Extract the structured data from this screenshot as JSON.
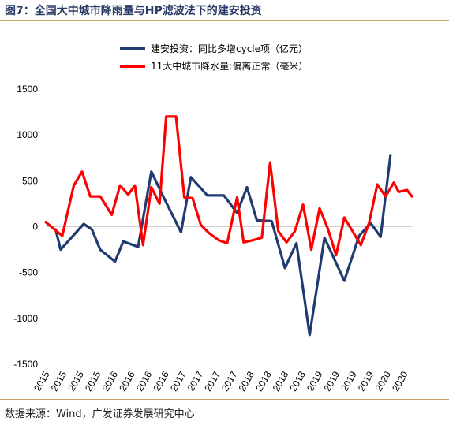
{
  "header": {
    "title": "图7：全国大中城市降雨量与HP滤波法下的建安投资"
  },
  "footer": {
    "source": "数据来源：Wind，广发证券发展研究中心"
  },
  "chart_data": {
    "type": "line",
    "y_ticks": [
      "1500",
      "1000",
      "500",
      "0",
      "-500",
      "-1000",
      "-1500"
    ],
    "ylim": [
      -1500,
      1500
    ],
    "x_ticks": [
      "2015",
      "2015",
      "2015",
      "2015",
      "2016",
      "2016",
      "2016",
      "2016",
      "2017",
      "2017",
      "2017",
      "2017",
      "2018",
      "2018",
      "2018",
      "2018",
      "2019",
      "2019",
      "2019",
      "2019",
      "2020",
      "2020"
    ],
    "legend": [
      {
        "name": "建安投资：同比多增cycle项（亿元）",
        "color": "#1f3b70"
      },
      {
        "name": "11大中城市降水量:偏离正常（毫米）",
        "color": "#ff0000"
      }
    ],
    "series": [
      {
        "name": "建安投资：同比多增cycle项（亿元）",
        "color": "#1f3b70",
        "x": [
          0.6,
          0.9,
          1.4,
          2.3,
          2.8,
          3.3,
          4.2,
          4.7,
          5.6,
          6.4,
          7.2,
          8.2,
          8.8,
          9.8,
          10.8,
          11.6,
          12.2,
          12.8,
          13.7,
          14.5,
          15.2,
          16.0,
          16.9,
          18.1,
          19.0,
          19.7,
          20.3,
          20.9
        ],
        "values": [
          -30,
          -250,
          -150,
          30,
          -30,
          -250,
          -380,
          -160,
          -220,
          600,
          300,
          -60,
          540,
          340,
          340,
          150,
          430,
          70,
          60,
          -450,
          -180,
          -1180,
          -120,
          -590,
          -100,
          40,
          -110,
          780
        ]
      },
      {
        "name": "11大中城市降水量:偏离正常（毫米）",
        "color": "#ff0000",
        "x": [
          0.0,
          1.0,
          1.7,
          2.2,
          2.7,
          3.3,
          4.0,
          4.5,
          5.0,
          5.4,
          5.9,
          6.4,
          6.9,
          7.3,
          7.9,
          8.4,
          8.9,
          9.4,
          9.9,
          10.5,
          11.0,
          11.6,
          12.0,
          12.5,
          13.1,
          13.6,
          14.1,
          14.6,
          15.1,
          15.6,
          16.1,
          16.6,
          17.1,
          17.6,
          18.1,
          18.6,
          19.1,
          19.6,
          20.1,
          20.6,
          21.1,
          21.4,
          21.9,
          22.2
        ],
        "values": [
          50,
          -100,
          450,
          600,
          330,
          330,
          130,
          450,
          350,
          450,
          -200,
          430,
          250,
          1200,
          1200,
          320,
          310,
          20,
          -70,
          -150,
          -180,
          320,
          -170,
          -150,
          -120,
          700,
          -50,
          -170,
          -50,
          240,
          -250,
          200,
          -20,
          -310,
          100,
          -50,
          -200,
          40,
          460,
          330,
          480,
          380,
          400,
          330
        ]
      }
    ]
  }
}
